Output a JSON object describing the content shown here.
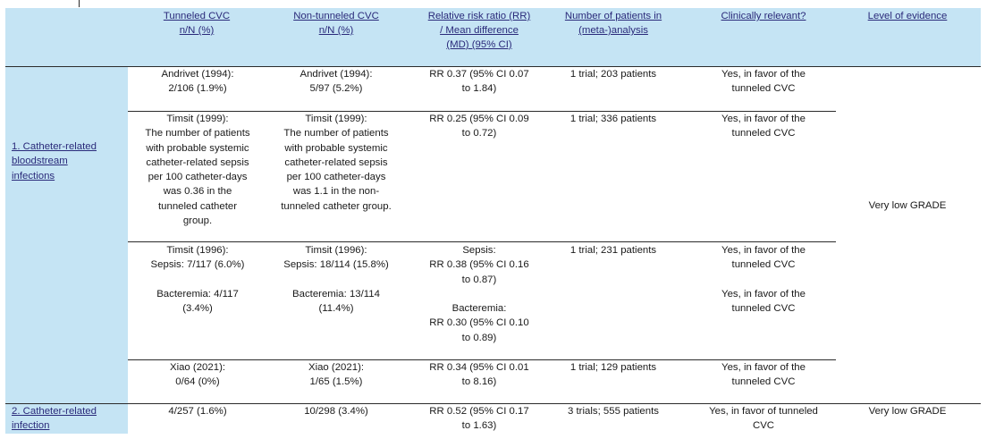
{
  "headers": {
    "tunneled": [
      "Tunneled CVC",
      "n/N (%)"
    ],
    "non_tunneled": [
      "Non-tunneled CVC",
      "n/N (%)"
    ],
    "rr_md": [
      "Relative risk ratio (RR)",
      "/ Mean difference",
      "(MD) (95% CI)"
    ],
    "patients": [
      "Number of patients in",
      "(meta-)analysis"
    ],
    "relevant": [
      "Clinically relevant?"
    ],
    "evidence": [
      "Level of evidence"
    ]
  },
  "outcome1": {
    "label": [
      "1. Catheter-related",
      "bloodstream",
      "infections"
    ],
    "evidence": "Very low GRADE",
    "rows": [
      {
        "tunneled": [
          "Andrivet (1994):",
          "2/106 (1.9%)"
        ],
        "non_tunneled": [
          "Andrivet (1994):",
          "5/97 (5.2%)"
        ],
        "rr": [
          "RR 0.37 (95% CI 0.07",
          "to 1.84)"
        ],
        "patients": [
          "1 trial; 203 patients"
        ],
        "relevant": [
          "Yes, in favor of the",
          "tunneled CVC"
        ]
      },
      {
        "tunneled": [
          "Timsit (1999):",
          "The number of patients",
          "with probable systemic",
          "catheter-related sepsis",
          "per 100 catheter-days",
          "was 0.36 in the",
          "tunneled catheter",
          "group."
        ],
        "non_tunneled": [
          "Timsit (1999):",
          "The number of patients",
          "with probable systemic",
          "catheter-related sepsis",
          "per 100 catheter-days",
          "was 1.1 in the non-",
          "tunneled catheter group."
        ],
        "rr": [
          "RR 0.25 (95% CI 0.09",
          "to 0.72)"
        ],
        "patients": [
          "1 trial; 336 patients"
        ],
        "relevant": [
          "Yes, in favor of the",
          "tunneled CVC"
        ]
      },
      {
        "tunneled": [
          "Timsit (1996):",
          "Sepsis: 7/117 (6.0%)",
          "",
          "Bacteremia: 4/117",
          "(3.4%)"
        ],
        "non_tunneled": [
          "Timsit (1996):",
          "Sepsis: 18/114 (15.8%)",
          "",
          "Bacteremia: 13/114",
          "(11.4%)"
        ],
        "rr": [
          "Sepsis:",
          "RR 0.38 (95% CI 0.16",
          "to 0.87)",
          "",
          "Bacteremia:",
          "RR 0.30 (95% CI 0.10",
          "to 0.89)"
        ],
        "patients": [
          "1 trial; 231 patients"
        ],
        "relevant": [
          "Yes, in favor of the",
          "tunneled CVC",
          "",
          "Yes, in favor of the",
          "tunneled CVC"
        ]
      },
      {
        "tunneled": [
          "Xiao (2021):",
          "0/64 (0%)"
        ],
        "non_tunneled": [
          "Xiao (2021):",
          "1/65 (1.5%)"
        ],
        "rr": [
          "RR 0.34 (95% CI 0.01",
          "to 8.16)"
        ],
        "patients": [
          "1 trial; 129 patients"
        ],
        "relevant": [
          "Yes, in favor of the",
          "tunneled CVC"
        ]
      }
    ]
  },
  "outcome2": {
    "label": [
      "2. Catheter-related",
      "infection"
    ],
    "tunneled": [
      "4/257 (1.6%)"
    ],
    "non_tunneled": [
      "10/298 (3.4%)"
    ],
    "rr": [
      "RR 0.52 (95% CI 0.17",
      "to 1.63)"
    ],
    "patients": [
      "3 trials; 555 patients"
    ],
    "relevant": [
      "Yes, in favor of tunneled",
      "CVC"
    ],
    "evidence": "Very low GRADE"
  }
}
